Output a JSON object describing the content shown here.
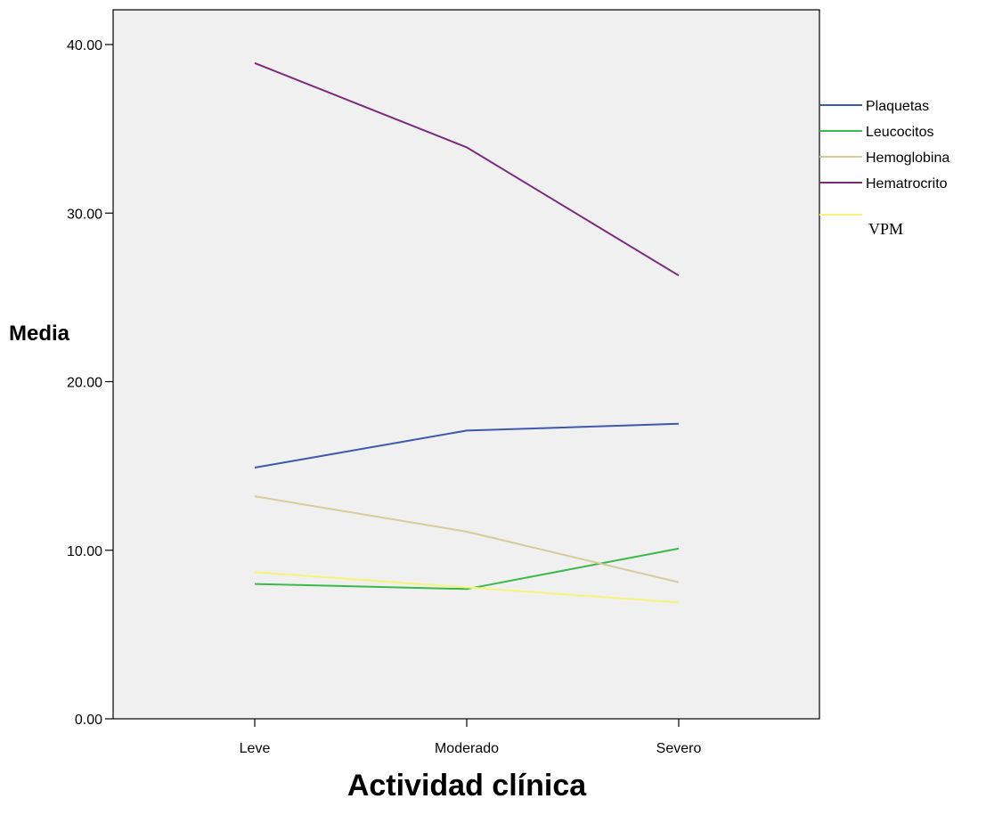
{
  "chart_data": {
    "type": "line",
    "xlabel": "Actividad clínica",
    "ylabel": "Media",
    "categories": [
      "Leve",
      "Moderado",
      "Severo"
    ],
    "ylim": [
      0,
      42
    ],
    "yticks": [
      0,
      10,
      20,
      30,
      40
    ],
    "ytick_labels": [
      "0.00",
      "10.00",
      "20.00",
      "30.00",
      "40.00"
    ],
    "grid": false,
    "legend_position": "right",
    "plot_background": "#f0f0f0",
    "series": [
      {
        "name": "Plaquetas",
        "color": "#3e58ac",
        "values": [
          14.9,
          17.1,
          17.5
        ]
      },
      {
        "name": "Leucocitos",
        "color": "#3db84a",
        "values": [
          8.0,
          7.7,
          10.1
        ]
      },
      {
        "name": "Hemoglobina",
        "color": "#d4cc9a",
        "values": [
          13.2,
          11.1,
          8.1
        ]
      },
      {
        "name": "Hematrocrito",
        "color": "#7b2a7d",
        "values": [
          38.9,
          33.9,
          26.3
        ]
      },
      {
        "name": "VPM",
        "color": "#f5f57a",
        "values": [
          8.7,
          7.8,
          6.9
        ]
      }
    ]
  }
}
